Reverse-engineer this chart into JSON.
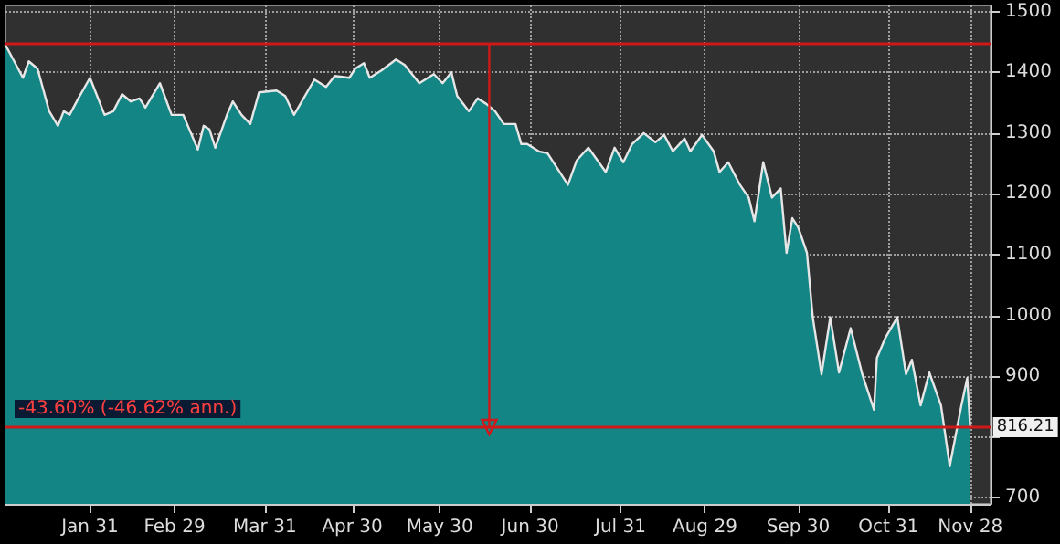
{
  "chart_data": {
    "type": "area",
    "x": [
      "--01-02",
      "--01-08",
      "--01-10",
      "--01-13",
      "--01-17",
      "--01-20",
      "--01-22",
      "--01-24",
      "--01-27",
      "--01-31",
      "--02-05",
      "--02-08",
      "--02-11",
      "--02-14",
      "--02-17",
      "--02-19",
      "--02-24",
      "--02-28",
      "--03-03",
      "--03-08",
      "--03-10",
      "--03-12",
      "--03-14",
      "--03-18",
      "--03-20",
      "--03-23",
      "--03-26",
      "--03-29",
      "--04-04",
      "--04-07",
      "--04-10",
      "--04-17",
      "--04-21",
      "--04-24",
      "--04-29",
      "--05-01",
      "--05-04",
      "--05-06",
      "--05-10",
      "--05-15",
      "--05-18",
      "--05-23",
      "--05-28",
      "--05-31",
      "--06-03",
      "--06-05",
      "--06-09",
      "--06-12",
      "--06-15",
      "--06-18",
      "--06-21",
      "--06-25",
      "--06-27",
      "--06-29",
      "--07-03",
      "--07-06",
      "--07-13",
      "--07-16",
      "--07-20",
      "--07-26",
      "--07-29",
      "--08-01",
      "--08-04",
      "--08-08",
      "--08-12",
      "--08-15",
      "--08-18",
      "--08-22",
      "--08-24",
      "--08-28",
      "--09-01",
      "--09-03",
      "--09-06",
      "--09-10",
      "--09-13",
      "--09-15",
      "--09-18",
      "--09-21",
      "--09-24",
      "--09-26",
      "--09-28",
      "--09-30",
      "--10-03",
      "--10-05",
      "--10-08",
      "--10-11",
      "--10-14",
      "--10-18",
      "--10-22",
      "--10-26",
      "--10-27",
      "--10-30",
      "--11-03",
      "--11-06",
      "--11-08",
      "--11-11",
      "--11-14",
      "--11-18",
      "--11-21",
      "--11-25",
      "--11-27",
      "--11-28"
    ],
    "series": [
      {
        "color": "#138585",
        "values": [
          1445,
          1391,
          1418,
          1406,
          1336,
          1312,
          1336,
          1330,
          1357,
          1391,
          1330,
          1336,
          1364,
          1352,
          1357,
          1342,
          1382,
          1330,
          1330,
          1273,
          1312,
          1306,
          1276,
          1330,
          1352,
          1330,
          1315,
          1367,
          1370,
          1361,
          1330,
          1388,
          1376,
          1394,
          1391,
          1406,
          1415,
          1391,
          1403,
          1421,
          1412,
          1382,
          1397,
          1382,
          1400,
          1361,
          1336,
          1357,
          1348,
          1336,
          1315,
          1315,
          1282,
          1282,
          1270,
          1267,
          1215,
          1255,
          1276,
          1236,
          1276,
          1252,
          1282,
          1300,
          1285,
          1297,
          1270,
          1291,
          1270,
          1297,
          1270,
          1236,
          1252,
          1215,
          1194,
          1155,
          1252,
          1194,
          1209,
          1103,
          1160,
          1145,
          1103,
          997,
          903,
          997,
          906,
          979,
          903,
          845,
          930,
          964,
          997,
          903,
          927,
          852,
          906,
          852,
          752,
          852,
          897,
          816.21
        ]
      },
      {
        "type": "line",
        "color": "#d01818",
        "marker": "triangle",
        "x": [
          "--06-16",
          "--06-16"
        ],
        "values": [
          1447,
          816.21
        ]
      }
    ],
    "xlim": [
      "--01-02",
      "--12-05"
    ],
    "xticks": [
      {
        "value": "--01-31",
        "label": "Jan 31"
      },
      {
        "value": "--02-29",
        "label": "Feb 29"
      },
      {
        "value": "--03-31",
        "label": "Mar 31"
      },
      {
        "value": "--04-30",
        "label": "Apr 30"
      },
      {
        "value": "--05-30",
        "label": "May 30"
      },
      {
        "value": "--06-30",
        "label": "Jun 30"
      },
      {
        "value": "--07-31",
        "label": "Jul 31"
      },
      {
        "value": "--08-29",
        "label": "Aug 29"
      },
      {
        "value": "--09-30",
        "label": "Sep 30"
      },
      {
        "value": "--10-31",
        "label": "Oct 31"
      },
      {
        "value": "--11-28",
        "label": "Nov 28"
      }
    ],
    "ylim": [
      690,
      1510
    ],
    "yticks": [
      700,
      {
        "value": 800,
        "label": null
      },
      900,
      1000,
      1100,
      1200,
      1300,
      1400,
      1500
    ],
    "grid": true,
    "ref_lines": [
      {
        "axis": "y",
        "value": 1447,
        "color": "#d01818"
      },
      {
        "axis": "y",
        "value": 816.21,
        "color": "#d01818",
        "label": "-43.60% (-46.62% ann.)"
      }
    ],
    "annotations": [
      {
        "text": "816.21",
        "x": "--11-28",
        "y": 816.21
      }
    ]
  }
}
